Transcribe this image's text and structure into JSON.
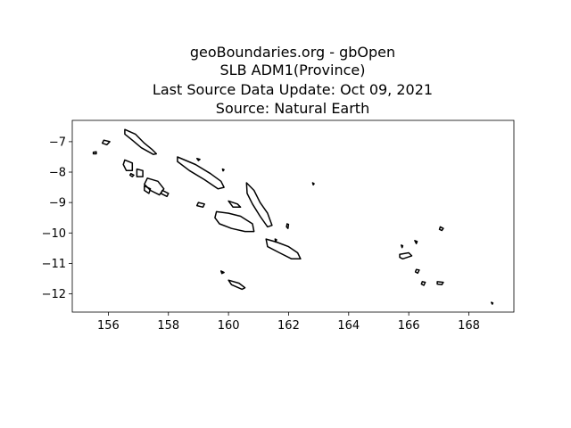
{
  "title_lines": [
    "geoBoundaries.org - gbOpen",
    "SLB ADM1(Province)",
    "Last Source Data Update: Oct 09, 2021",
    "Source: Natural Earth"
  ],
  "chart_data": {
    "type": "map",
    "title": "geoBoundaries.org - gbOpen SLB ADM1(Province) Last Source Data Update: Oct 09, 2021 Source: Natural Earth",
    "xlabel": "",
    "ylabel": "",
    "xlim": [
      154.8,
      169.5
    ],
    "ylim": [
      -12.6,
      -6.3
    ],
    "grid": false,
    "x_ticks": [
      156,
      158,
      160,
      162,
      164,
      166,
      168
    ],
    "x_tick_labels": [
      "156",
      "158",
      "160",
      "162",
      "164",
      "166",
      "168"
    ],
    "y_ticks": [
      -7,
      -8,
      -9,
      -10,
      -11,
      -12
    ],
    "y_tick_labels": [
      "−7",
      "−8",
      "−9",
      "−10",
      "−11",
      "−12"
    ],
    "outline_color": "#000000",
    "islands": [
      {
        "id": "choiseul",
        "points": [
          [
            156.55,
            -6.6
          ],
          [
            156.9,
            -6.75
          ],
          [
            157.2,
            -7.05
          ],
          [
            157.45,
            -7.25
          ],
          [
            157.6,
            -7.4
          ],
          [
            157.5,
            -7.42
          ],
          [
            157.1,
            -7.2
          ],
          [
            156.8,
            -6.95
          ],
          [
            156.55,
            -6.75
          ]
        ]
      },
      {
        "id": "santa-isabel",
        "points": [
          [
            158.3,
            -7.5
          ],
          [
            158.9,
            -7.75
          ],
          [
            159.4,
            -8.05
          ],
          [
            159.75,
            -8.3
          ],
          [
            159.85,
            -8.5
          ],
          [
            159.65,
            -8.55
          ],
          [
            159.2,
            -8.25
          ],
          [
            158.7,
            -7.95
          ],
          [
            158.3,
            -7.65
          ]
        ]
      },
      {
        "id": "malaita",
        "points": [
          [
            160.6,
            -8.35
          ],
          [
            160.85,
            -8.6
          ],
          [
            161.05,
            -9.0
          ],
          [
            161.3,
            -9.35
          ],
          [
            161.45,
            -9.75
          ],
          [
            161.3,
            -9.8
          ],
          [
            161.05,
            -9.45
          ],
          [
            160.8,
            -9.05
          ],
          [
            160.62,
            -8.7
          ]
        ]
      },
      {
        "id": "guadalcanal",
        "points": [
          [
            159.6,
            -9.3
          ],
          [
            160.0,
            -9.35
          ],
          [
            160.4,
            -9.45
          ],
          [
            160.8,
            -9.7
          ],
          [
            160.85,
            -9.95
          ],
          [
            160.55,
            -9.95
          ],
          [
            160.1,
            -9.85
          ],
          [
            159.7,
            -9.7
          ],
          [
            159.55,
            -9.5
          ]
        ]
      },
      {
        "id": "makira",
        "points": [
          [
            161.25,
            -10.2
          ],
          [
            161.6,
            -10.3
          ],
          [
            162.0,
            -10.45
          ],
          [
            162.3,
            -10.65
          ],
          [
            162.4,
            -10.85
          ],
          [
            162.1,
            -10.85
          ],
          [
            161.7,
            -10.65
          ],
          [
            161.3,
            -10.45
          ]
        ]
      },
      {
        "id": "rennell",
        "points": [
          [
            160.0,
            -11.55
          ],
          [
            160.35,
            -11.65
          ],
          [
            160.55,
            -11.8
          ],
          [
            160.45,
            -11.85
          ],
          [
            160.1,
            -11.7
          ]
        ]
      },
      {
        "id": "new-georgia",
        "points": [
          [
            157.3,
            -8.2
          ],
          [
            157.65,
            -8.3
          ],
          [
            157.85,
            -8.55
          ],
          [
            157.7,
            -8.75
          ],
          [
            157.4,
            -8.6
          ],
          [
            157.2,
            -8.4
          ]
        ]
      },
      {
        "id": "vella-lavella",
        "points": [
          [
            156.55,
            -7.6
          ],
          [
            156.8,
            -7.7
          ],
          [
            156.8,
            -7.95
          ],
          [
            156.6,
            -7.95
          ],
          [
            156.5,
            -7.75
          ]
        ]
      },
      {
        "id": "kolombangara",
        "points": [
          [
            156.95,
            -7.9
          ],
          [
            157.15,
            -7.95
          ],
          [
            157.15,
            -8.15
          ],
          [
            156.95,
            -8.15
          ]
        ]
      },
      {
        "id": "rendova",
        "points": [
          [
            157.2,
            -8.45
          ],
          [
            157.4,
            -8.55
          ],
          [
            157.35,
            -8.7
          ],
          [
            157.2,
            -8.6
          ]
        ]
      },
      {
        "id": "shortlands",
        "points": [
          [
            155.85,
            -6.95
          ],
          [
            156.05,
            -7.0
          ],
          [
            155.95,
            -7.1
          ],
          [
            155.8,
            -7.05
          ]
        ]
      },
      {
        "id": "mono",
        "points": [
          [
            155.5,
            -7.35
          ],
          [
            155.6,
            -7.33
          ],
          [
            155.6,
            -7.4
          ],
          [
            155.5,
            -7.4
          ]
        ]
      },
      {
        "id": "gizo",
        "points": [
          [
            156.75,
            -8.05
          ],
          [
            156.85,
            -8.1
          ],
          [
            156.8,
            -8.15
          ],
          [
            156.72,
            -8.1
          ]
        ]
      },
      {
        "id": "florida",
        "points": [
          [
            160.0,
            -8.95
          ],
          [
            160.3,
            -9.05
          ],
          [
            160.4,
            -9.15
          ],
          [
            160.15,
            -9.15
          ]
        ]
      },
      {
        "id": "russell",
        "points": [
          [
            159.0,
            -9.0
          ],
          [
            159.2,
            -9.05
          ],
          [
            159.15,
            -9.15
          ],
          [
            158.95,
            -9.1
          ]
        ]
      },
      {
        "id": "vangunu",
        "points": [
          [
            157.8,
            -8.6
          ],
          [
            158.0,
            -8.7
          ],
          [
            157.95,
            -8.8
          ],
          [
            157.75,
            -8.7
          ]
        ]
      },
      {
        "id": "ulawa",
        "points": [
          [
            161.95,
            -9.7
          ],
          [
            162.0,
            -9.72
          ],
          [
            161.98,
            -9.85
          ],
          [
            161.93,
            -9.8
          ]
        ]
      },
      {
        "id": "maramasike",
        "points": [
          [
            161.55,
            -10.2
          ],
          [
            161.6,
            -10.22
          ],
          [
            161.57,
            -10.3
          ]
        ]
      },
      {
        "id": "santa-cruz",
        "points": [
          [
            165.7,
            -10.7
          ],
          [
            166.0,
            -10.65
          ],
          [
            166.1,
            -10.75
          ],
          [
            165.8,
            -10.85
          ],
          [
            165.7,
            -10.8
          ]
        ]
      },
      {
        "id": "vanikoro",
        "points": [
          [
            166.45,
            -11.6
          ],
          [
            166.55,
            -11.62
          ],
          [
            166.5,
            -11.72
          ],
          [
            166.42,
            -11.68
          ]
        ]
      },
      {
        "id": "utupua",
        "points": [
          [
            166.25,
            -11.2
          ],
          [
            166.35,
            -11.22
          ],
          [
            166.3,
            -11.32
          ],
          [
            166.22,
            -11.28
          ]
        ]
      },
      {
        "id": "duff",
        "points": [
          [
            166.2,
            -10.25
          ],
          [
            166.28,
            -10.28
          ],
          [
            166.25,
            -10.35
          ]
        ]
      },
      {
        "id": "reef-islands",
        "points": [
          [
            165.75,
            -10.4
          ],
          [
            165.8,
            -10.42
          ],
          [
            165.78,
            -10.48
          ]
        ]
      },
      {
        "id": "tikopia",
        "points": [
          [
            166.95,
            -11.6
          ],
          [
            167.15,
            -11.62
          ],
          [
            167.1,
            -11.7
          ],
          [
            166.95,
            -11.68
          ]
        ]
      },
      {
        "id": "anuta",
        "points": [
          [
            167.05,
            -9.8
          ],
          [
            167.15,
            -9.85
          ],
          [
            167.1,
            -9.92
          ],
          [
            167.02,
            -9.88
          ]
        ]
      },
      {
        "id": "fatutaka",
        "points": [
          [
            168.75,
            -12.28
          ],
          [
            168.8,
            -12.3
          ],
          [
            168.78,
            -12.34
          ]
        ]
      },
      {
        "id": "sikaiana",
        "points": [
          [
            162.8,
            -8.35
          ],
          [
            162.85,
            -8.38
          ],
          [
            162.82,
            -8.42
          ]
        ]
      },
      {
        "id": "ontong-java-tip",
        "points": [
          [
            159.8,
            -7.9
          ],
          [
            159.85,
            -7.92
          ],
          [
            159.82,
            -7.96
          ]
        ]
      },
      {
        "id": "pavuvu",
        "points": [
          [
            158.95,
            -7.55
          ],
          [
            159.05,
            -7.58
          ],
          [
            159.0,
            -7.62
          ]
        ]
      },
      {
        "id": "bellona",
        "points": [
          [
            159.75,
            -11.25
          ],
          [
            159.85,
            -11.3
          ],
          [
            159.78,
            -11.33
          ]
        ]
      }
    ]
  }
}
